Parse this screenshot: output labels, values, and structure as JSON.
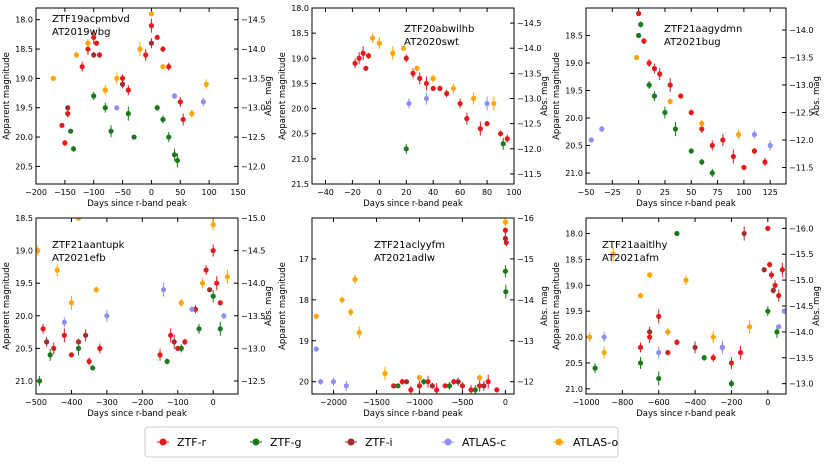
{
  "figure_caption": "",
  "legend": {
    "entries": [
      {
        "label": "ZTF-r",
        "color": "#e41a1c"
      },
      {
        "label": "ZTF-g",
        "color": "#1a7a1a"
      },
      {
        "label": "ZTF-i",
        "color": "#a52a2a"
      },
      {
        "label": "ATLAS-c",
        "color": "#8e8ef5"
      },
      {
        "label": "ATLAS-o",
        "color": "#ffa500"
      }
    ]
  },
  "chart_data": [
    {
      "type": "scatter",
      "title_lines": [
        "ZTF19acpmbvd",
        "AT2019wbg"
      ],
      "xlabel": "Days since r-band peak",
      "ylabel": "Apparent magnitude",
      "ylabel_right": "Abs. mag",
      "xlim": [
        -200,
        150
      ],
      "ylim": [
        20.8,
        17.8
      ],
      "y2lim": [
        -11.7,
        -14.7
      ],
      "xticks": [
        -200,
        -150,
        -100,
        -50,
        0,
        50,
        100,
        150
      ],
      "yticks": [
        18.0,
        18.5,
        19.0,
        19.5,
        20.0,
        20.5
      ],
      "y2ticks": [
        -14.5,
        -14.0,
        -13.5,
        -13.0,
        -12.5,
        -12.0
      ],
      "series": [
        {
          "name": "ZTF-r",
          "x": [
            -155,
            -150,
            -145,
            -120,
            -110,
            -100,
            -95,
            -90,
            -50,
            -40,
            -10,
            0,
            10,
            20,
            30,
            50,
            55
          ],
          "y": [
            19.8,
            20.1,
            19.6,
            18.8,
            18.5,
            18.3,
            18.4,
            18.6,
            19.0,
            19.2,
            18.6,
            18.1,
            18.3,
            18.5,
            18.8,
            19.4,
            19.7
          ]
        },
        {
          "name": "ZTF-g",
          "x": [
            -140,
            -135,
            -100,
            -80,
            -70,
            -40,
            -30,
            10,
            20,
            30,
            40,
            45
          ],
          "y": [
            19.9,
            20.2,
            19.3,
            19.5,
            19.9,
            19.6,
            20.0,
            19.5,
            19.7,
            20.0,
            20.3,
            20.4
          ]
        },
        {
          "name": "ZTF-i",
          "x": [
            -145,
            -100,
            -50,
            0
          ],
          "y": [
            19.5,
            18.6,
            19.1,
            18.4
          ]
        },
        {
          "name": "ATLAS-c",
          "x": [
            -60,
            40,
            90
          ],
          "y": [
            19.5,
            19.3,
            19.4
          ]
        },
        {
          "name": "ATLAS-o",
          "x": [
            -170,
            -130,
            -110,
            -80,
            -60,
            -20,
            0,
            20,
            70,
            95
          ],
          "y": [
            19.0,
            18.6,
            18.4,
            19.2,
            19.0,
            18.5,
            17.9,
            18.8,
            19.6,
            19.1
          ]
        }
      ]
    },
    {
      "type": "scatter",
      "title_lines": [
        "ZTF20abwilhb",
        "AT2020swt"
      ],
      "xlabel": "Days since r-band peak",
      "ylabel": "Apparent magnitude",
      "ylabel_right": "Abs. mag",
      "xlim": [
        -50,
        100
      ],
      "ylim": [
        21.5,
        18.0
      ],
      "y2lim": [
        -11.3,
        -14.8
      ],
      "xticks": [
        -40,
        -20,
        0,
        20,
        40,
        60,
        80,
        100
      ],
      "yticks": [
        18.0,
        18.5,
        19.0,
        19.5,
        20.0,
        20.5,
        21.0,
        21.5
      ],
      "y2ticks": [
        -14.5,
        -14.0,
        -13.5,
        -13.0,
        -12.5,
        -12.0,
        -11.5
      ],
      "series": [
        {
          "name": "ZTF-r",
          "x": [
            -18,
            -15,
            -12,
            -10,
            -8,
            20,
            25,
            30,
            35,
            40,
            45,
            50,
            60,
            65,
            75,
            80,
            90,
            95
          ],
          "y": [
            19.1,
            19.0,
            18.9,
            19.2,
            18.95,
            19.0,
            19.3,
            19.4,
            19.5,
            19.6,
            19.6,
            19.7,
            19.9,
            20.2,
            20.4,
            20.3,
            20.5,
            20.6
          ]
        },
        {
          "name": "ZTF-g",
          "x": [
            20,
            92
          ],
          "y": [
            20.8,
            20.7
          ]
        },
        {
          "name": "ATLAS-c",
          "x": [
            22,
            35,
            80
          ],
          "y": [
            19.9,
            19.8,
            19.9
          ]
        },
        {
          "name": "ATLAS-o",
          "x": [
            -5,
            0,
            10,
            18,
            28,
            40,
            55,
            70,
            85
          ],
          "y": [
            18.6,
            18.7,
            18.9,
            18.8,
            19.2,
            19.4,
            19.6,
            19.8,
            19.9
          ]
        }
      ]
    },
    {
      "type": "scatter",
      "title_lines": [
        "ZTF21aagydmn",
        "AT2021bug"
      ],
      "xlabel": "Days since r-band peak",
      "ylabel": "Apparent magnitude",
      "ylabel_right": "Abs. mag",
      "xlim": [
        -50,
        140
      ],
      "ylim": [
        21.2,
        18.0
      ],
      "y2lim": [
        -11.2,
        -14.4
      ],
      "xticks": [
        -50,
        -25,
        0,
        25,
        50,
        75,
        100,
        125
      ],
      "yticks": [
        18.5,
        19.0,
        19.5,
        20.0,
        20.5,
        21.0
      ],
      "y2ticks": [
        -14.0,
        -13.5,
        -13.0,
        -12.5,
        -12.0,
        -11.5
      ],
      "series": [
        {
          "name": "ZTF-r",
          "x": [
            0,
            5,
            10,
            15,
            20,
            30,
            40,
            50,
            60,
            70,
            80,
            90,
            100,
            110,
            120
          ],
          "y": [
            18.1,
            18.6,
            19.0,
            19.1,
            19.2,
            19.4,
            19.6,
            19.9,
            20.2,
            20.5,
            20.4,
            20.7,
            20.9,
            20.6,
            20.8
          ]
        },
        {
          "name": "ZTF-g",
          "x": [
            0,
            2,
            10,
            15,
            25,
            35,
            50,
            60,
            70
          ],
          "y": [
            18.5,
            18.3,
            19.4,
            19.6,
            19.9,
            20.2,
            20.6,
            20.8,
            21.0
          ]
        },
        {
          "name": "ATLAS-c",
          "x": [
            -45,
            -35,
            110,
            125
          ],
          "y": [
            20.4,
            20.2,
            20.3,
            20.5
          ]
        },
        {
          "name": "ATLAS-o",
          "x": [
            -2,
            30,
            60,
            95
          ],
          "y": [
            18.9,
            19.7,
            20.1,
            20.3
          ]
        }
      ]
    },
    {
      "type": "scatter",
      "title_lines": [
        "ZTF21aantupk",
        "AT2021efb"
      ],
      "xlabel": "Days since r-band peak",
      "ylabel": "Apparent magnitude",
      "ylabel_right": "Abs. mag",
      "xlim": [
        -500,
        70
      ],
      "ylim": [
        21.2,
        18.5
      ],
      "y2lim": [
        -12.3,
        -15.0
      ],
      "xticks": [
        -500,
        -400,
        -300,
        -200,
        -100,
        0
      ],
      "yticks": [
        18.5,
        19.0,
        19.5,
        20.0,
        20.5,
        21.0
      ],
      "y2ticks": [
        -15.0,
        -14.5,
        -14.0,
        -13.5,
        -13.0,
        -12.5
      ],
      "series": [
        {
          "name": "ZTF-r",
          "x": [
            -480,
            -450,
            -420,
            -400,
            -380,
            -350,
            -320,
            -150,
            -120,
            -100,
            -80,
            -50,
            -20,
            0,
            10,
            20
          ],
          "y": [
            20.2,
            20.5,
            20.3,
            20.6,
            20.4,
            20.7,
            20.5,
            20.6,
            20.3,
            20.5,
            20.4,
            19.9,
            19.3,
            19.0,
            19.5,
            19.8
          ]
        },
        {
          "name": "ZTF-g",
          "x": [
            -490,
            -460,
            -380,
            -340,
            -130,
            -90,
            -40,
            0,
            20
          ],
          "y": [
            21.0,
            20.6,
            20.5,
            20.8,
            20.7,
            20.5,
            20.2,
            19.7,
            20.2
          ]
        },
        {
          "name": "ZTF-i",
          "x": [
            -470,
            -360,
            -110,
            -10
          ],
          "y": [
            20.4,
            20.3,
            20.4,
            19.6
          ]
        },
        {
          "name": "ATLAS-c",
          "x": [
            -420,
            -300,
            -140,
            -60,
            30
          ],
          "y": [
            20.1,
            20.0,
            19.6,
            19.9,
            20.0
          ]
        },
        {
          "name": "ATLAS-o",
          "x": [
            -495,
            -440,
            -400,
            -380,
            -330,
            -90,
            -30,
            0,
            40
          ],
          "y": [
            19.0,
            19.3,
            19.8,
            18.5,
            19.6,
            19.8,
            19.5,
            18.6,
            19.4
          ]
        }
      ]
    },
    {
      "type": "scatter",
      "title_lines": [
        "ZTF21aclyyfm",
        "AT2021adlw"
      ],
      "xlabel": "Days since r-band peak",
      "ylabel": "Apparent magnitude",
      "ylabel_right": "Abs. mag",
      "xlim": [
        -2250,
        100
      ],
      "ylim": [
        20.3,
        16.0
      ],
      "y2lim": [
        -11.7,
        -16.0
      ],
      "xticks": [
        -2000,
        -1500,
        -1000,
        -500,
        0
      ],
      "yticks": [
        17,
        18,
        19,
        20
      ],
      "y2ticks": [
        -16,
        -15,
        -14,
        -13,
        -12
      ],
      "series": [
        {
          "name": "ZTF-r",
          "x": [
            -1300,
            -1200,
            -1100,
            -1000,
            -900,
            -800,
            -700,
            -600,
            -500,
            -400,
            -300,
            -200,
            -100,
            0,
            10
          ],
          "y": [
            20.1,
            20.0,
            20.2,
            20.1,
            20.0,
            20.2,
            20.1,
            20.0,
            20.1,
            20.2,
            20.1,
            20.0,
            20.2,
            16.3,
            16.6
          ]
        },
        {
          "name": "ZTF-g",
          "x": [
            -1250,
            -950,
            -650,
            -350,
            0,
            5
          ],
          "y": [
            20.1,
            20.0,
            20.1,
            20.2,
            17.3,
            17.8
          ]
        },
        {
          "name": "ZTF-i",
          "x": [
            -1150,
            -850,
            -550,
            -250,
            0
          ],
          "y": [
            20.0,
            20.1,
            20.0,
            20.1,
            16.5
          ]
        },
        {
          "name": "ATLAS-c",
          "x": [
            -2200,
            -2150,
            -2000,
            -1850
          ],
          "y": [
            19.2,
            20.0,
            20.0,
            20.1
          ]
        },
        {
          "name": "ATLAS-o",
          "x": [
            -2200,
            -1900,
            -1800,
            -1750,
            -1700,
            -1400,
            -1000,
            -300,
            0
          ],
          "y": [
            18.4,
            18.0,
            18.3,
            17.5,
            18.8,
            19.8,
            19.9,
            19.9,
            16.1
          ]
        }
      ]
    },
    {
      "type": "scatter",
      "title_lines": [
        "ZTF21aaitlhy",
        "AT2021afm"
      ],
      "xlabel": "Days since r-band peak",
      "ylabel": "Apparent magnitude",
      "ylabel_right": "Abs. mag",
      "xlim": [
        -1000,
        100
      ],
      "ylim": [
        21.1,
        17.7
      ],
      "y2lim": [
        -12.8,
        -16.2
      ],
      "xticks": [
        -1000,
        -800,
        -600,
        -400,
        -200,
        0
      ],
      "yticks": [
        18.0,
        18.5,
        19.0,
        19.5,
        20.0,
        20.5,
        21.0
      ],
      "y2ticks": [
        -16.0,
        -15.5,
        -15.0,
        -14.5,
        -14.0,
        -13.5,
        -13.0
      ],
      "series": [
        {
          "name": "ZTF-r",
          "x": [
            -700,
            -650,
            -600,
            -550,
            -500,
            -300,
            -250,
            -200,
            -150,
            0,
            10,
            20,
            40,
            60,
            80
          ],
          "y": [
            20.2,
            20.0,
            19.6,
            20.3,
            20.1,
            20.4,
            20.2,
            20.5,
            20.3,
            17.9,
            18.6,
            18.8,
            19.0,
            19.2,
            18.7
          ]
        },
        {
          "name": "ZTF-g",
          "x": [
            -950,
            -700,
            -600,
            -500,
            -350,
            -200,
            0,
            50
          ],
          "y": [
            20.6,
            20.5,
            20.8,
            18.0,
            20.4,
            20.9,
            19.5,
            19.9
          ]
        },
        {
          "name": "ZTF-i",
          "x": [
            -650,
            -400,
            -130,
            -20,
            30
          ],
          "y": [
            19.9,
            20.2,
            18.0,
            18.7,
            19.1
          ]
        },
        {
          "name": "ATLAS-c",
          "x": [
            -900,
            -600,
            -250,
            60,
            90
          ],
          "y": [
            20.0,
            20.3,
            20.2,
            19.8,
            19.5
          ]
        },
        {
          "name": "ATLAS-o",
          "x": [
            -980,
            -900,
            -850,
            -700,
            -650,
            -550,
            -450,
            -300,
            -100
          ],
          "y": [
            20.0,
            20.3,
            18.4,
            19.2,
            18.8,
            19.9,
            18.9,
            20.0,
            19.8
          ]
        }
      ]
    }
  ]
}
